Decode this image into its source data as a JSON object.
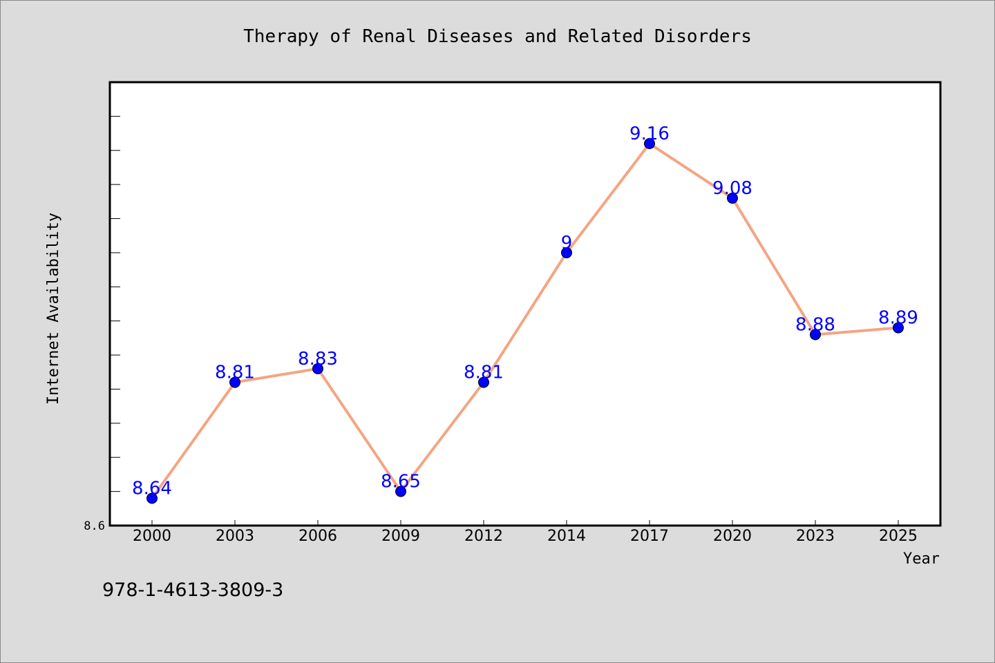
{
  "chart_data": {
    "type": "line",
    "title": "Therapy of Renal Diseases and Related Disorders",
    "xlabel": "Year",
    "ylabel": "Internet Availability",
    "categories": [
      "2000",
      "2003",
      "2006",
      "2009",
      "2012",
      "2014",
      "2017",
      "2020",
      "2023",
      "2025"
    ],
    "series": [
      {
        "values": [
          8.64,
          8.81,
          8.83,
          8.65,
          8.81,
          9.0,
          9.16,
          9.08,
          8.88,
          8.89
        ],
        "labels": [
          "8.64",
          "8.81",
          "8.83",
          "8.65",
          "8.81",
          "9",
          "9.16",
          "9.08",
          "8.88",
          "8.89"
        ]
      }
    ],
    "ylim": [
      8.6,
      9.25
    ],
    "ytick_labels": [
      "8.6"
    ],
    "grid": false,
    "colors": {
      "line": "#f4a582",
      "marker": "#0000ff",
      "data_label": "#0000ff",
      "plot_background": "#ffffff",
      "page_background": "#dcdcdc"
    }
  },
  "footer": {
    "isbn": "978-1-4613-3809-3"
  }
}
